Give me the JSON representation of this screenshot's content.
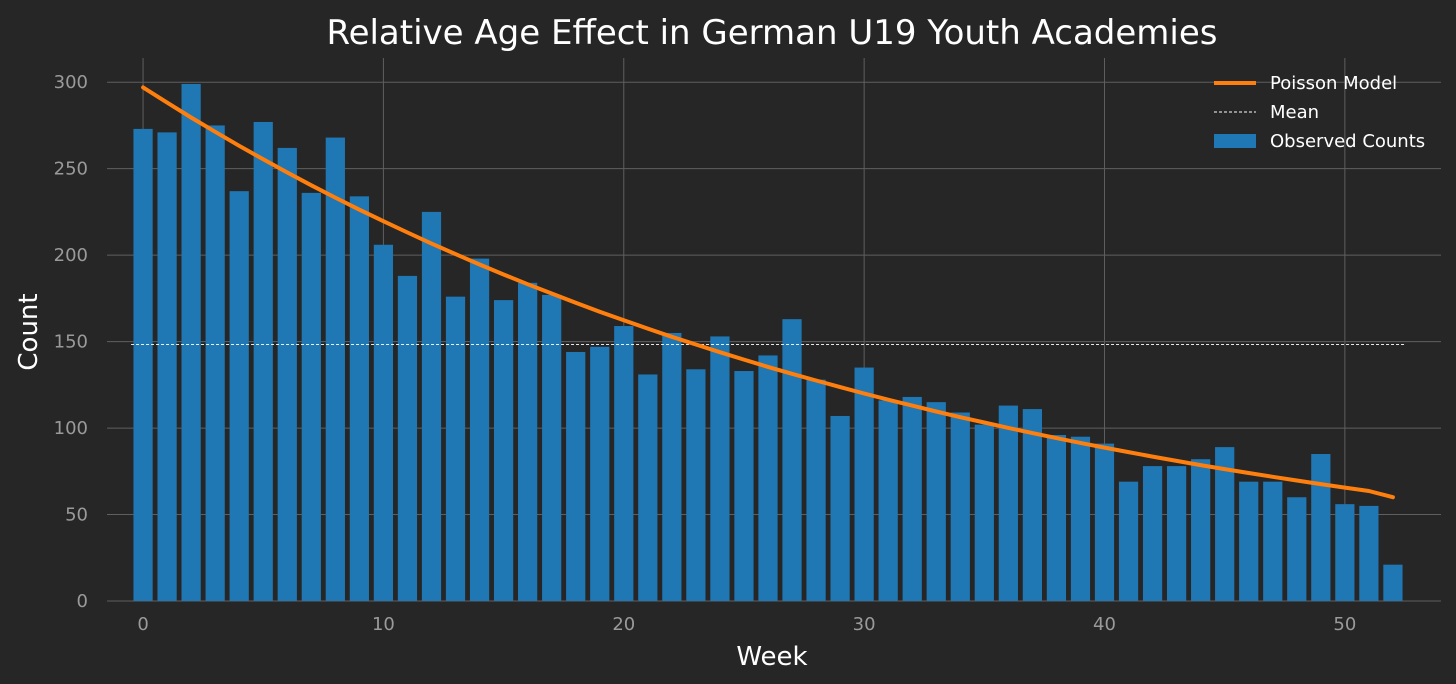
{
  "chart_data": {
    "type": "bar",
    "title": "Relative Age Effect in German U19 Youth Academies",
    "xlabel": "Week",
    "ylabel": "Count",
    "xlim": [
      -1.5,
      54
    ],
    "ylim": [
      0,
      314
    ],
    "xticks": [
      0,
      10,
      20,
      30,
      40,
      50
    ],
    "yticks": [
      0,
      50,
      100,
      150,
      200,
      250,
      300
    ],
    "grid": true,
    "legend_position": "top-right",
    "x": [
      0,
      1,
      2,
      3,
      4,
      5,
      6,
      7,
      8,
      9,
      10,
      11,
      12,
      13,
      14,
      15,
      16,
      17,
      18,
      19,
      20,
      21,
      22,
      23,
      24,
      25,
      26,
      27,
      28,
      29,
      30,
      31,
      32,
      33,
      34,
      35,
      36,
      37,
      38,
      39,
      40,
      41,
      42,
      43,
      44,
      45,
      46,
      47,
      48,
      49,
      50,
      51,
      52
    ],
    "series": [
      {
        "name": "Observed Counts",
        "type": "bar",
        "color": "#1f77b4",
        "values": [
          273,
          271,
          299,
          275,
          237,
          277,
          262,
          236,
          268,
          234,
          206,
          188,
          225,
          176,
          198,
          174,
          184,
          177,
          144,
          147,
          159,
          131,
          155,
          134,
          153,
          133,
          142,
          163,
          128,
          107,
          135,
          116,
          118,
          115,
          109,
          102,
          113,
          111,
          96,
          95,
          91,
          69,
          78,
          78,
          82,
          89,
          69,
          69,
          60,
          85,
          56,
          55,
          21
        ]
      },
      {
        "name": "Poisson Model",
        "type": "line",
        "color": "#ff7f0e",
        "values": [
          297,
          288.2,
          279.6,
          271.3,
          263.2,
          255.4,
          247.8,
          240.4,
          233.3,
          226.3,
          219.6,
          213.1,
          206.7,
          200.6,
          194.6,
          188.8,
          183.2,
          177.8,
          172.5,
          167.3,
          162.4,
          157.5,
          152.8,
          148.3,
          143.9,
          139.6,
          135.4,
          131.4,
          127.5,
          123.7,
          120.0,
          116.4,
          113.0,
          109.6,
          106.3,
          103.2,
          100.1,
          97.1,
          94.2,
          91.4,
          88.7,
          86.1,
          83.5,
          81.0,
          78.6,
          76.3,
          74.0,
          71.8,
          69.7,
          67.6,
          65.6,
          63.6,
          60
        ]
      },
      {
        "name": "Mean",
        "type": "hline",
        "color": "#ffffff",
        "value": 148.3
      }
    ]
  }
}
